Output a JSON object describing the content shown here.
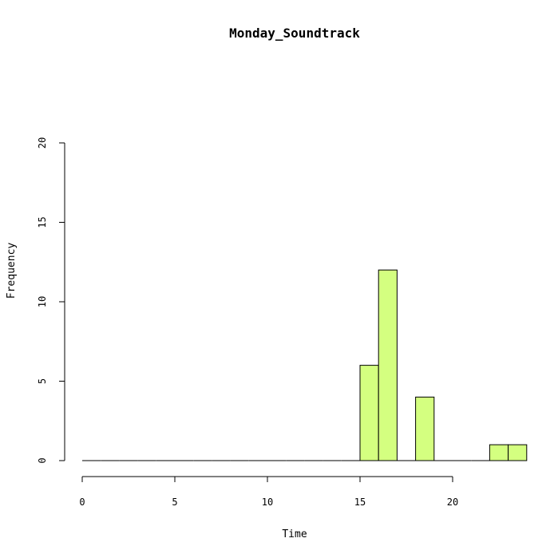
{
  "chart_data": {
    "type": "bar",
    "title": "Monday_Soundtrack",
    "xlabel": "Time",
    "ylabel": "Frequency",
    "bin_width": 1,
    "bins": [
      {
        "start": 0,
        "end": 1,
        "count": 0
      },
      {
        "start": 1,
        "end": 2,
        "count": 0
      },
      {
        "start": 2,
        "end": 3,
        "count": 0
      },
      {
        "start": 3,
        "end": 4,
        "count": 0
      },
      {
        "start": 4,
        "end": 5,
        "count": 0
      },
      {
        "start": 5,
        "end": 6,
        "count": 0
      },
      {
        "start": 6,
        "end": 7,
        "count": 0
      },
      {
        "start": 7,
        "end": 8,
        "count": 0
      },
      {
        "start": 8,
        "end": 9,
        "count": 0
      },
      {
        "start": 9,
        "end": 10,
        "count": 0
      },
      {
        "start": 10,
        "end": 11,
        "count": 0
      },
      {
        "start": 11,
        "end": 12,
        "count": 0
      },
      {
        "start": 12,
        "end": 13,
        "count": 0
      },
      {
        "start": 13,
        "end": 14,
        "count": 0
      },
      {
        "start": 14,
        "end": 15,
        "count": 0
      },
      {
        "start": 15,
        "end": 16,
        "count": 6
      },
      {
        "start": 16,
        "end": 17,
        "count": 12
      },
      {
        "start": 17,
        "end": 18,
        "count": 0
      },
      {
        "start": 18,
        "end": 19,
        "count": 4
      },
      {
        "start": 19,
        "end": 20,
        "count": 0
      },
      {
        "start": 20,
        "end": 21,
        "count": 0
      },
      {
        "start": 21,
        "end": 22,
        "count": 0
      },
      {
        "start": 22,
        "end": 23,
        "count": 1
      },
      {
        "start": 23,
        "end": 24,
        "count": 1
      }
    ],
    "x_ticks": [
      0,
      5,
      10,
      15,
      20
    ],
    "y_ticks": [
      0,
      5,
      10,
      15,
      20
    ],
    "xlim": [
      0,
      24
    ],
    "ylim": [
      0,
      20
    ],
    "grid": false,
    "bar_color": "#d4ff80",
    "bar_border_color": "#000000"
  }
}
